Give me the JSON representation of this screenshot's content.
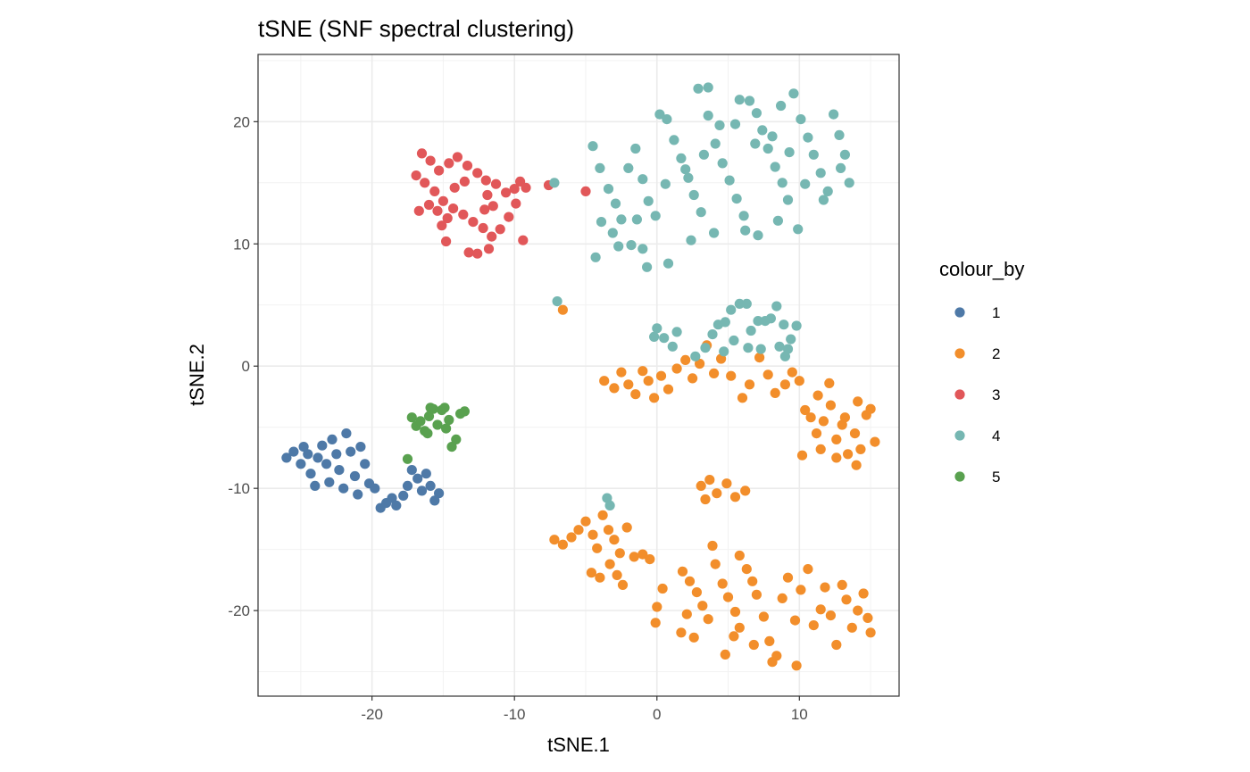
{
  "chart_data": {
    "type": "scatter",
    "title": "tSNE (SNF spectral clustering)",
    "xlabel": "tSNE.1",
    "ylabel": "tSNE.2",
    "xlim": [
      -28,
      17
    ],
    "ylim": [
      -27,
      25.5
    ],
    "x_ticks": [
      -20,
      -10,
      0,
      10
    ],
    "y_ticks": [
      -20,
      -10,
      0,
      10,
      20
    ],
    "grid": true,
    "legend": {
      "title": "colour_by",
      "placement": "right"
    },
    "series": [
      {
        "name": "1",
        "color": "#4e79a7",
        "points": [
          [
            -26,
            -7.5
          ],
          [
            -25.5,
            -7
          ],
          [
            -25,
            -8
          ],
          [
            -24.8,
            -6.6
          ],
          [
            -24.5,
            -7.2
          ],
          [
            -24.3,
            -8.8
          ],
          [
            -24,
            -9.8
          ],
          [
            -23.8,
            -7.5
          ],
          [
            -23.5,
            -6.5
          ],
          [
            -23.2,
            -8
          ],
          [
            -23,
            -9.5
          ],
          [
            -22.8,
            -6
          ],
          [
            -22.5,
            -7.2
          ],
          [
            -22.3,
            -8.5
          ],
          [
            -22,
            -10
          ],
          [
            -21.8,
            -5.5
          ],
          [
            -21.5,
            -7
          ],
          [
            -21.2,
            -9
          ],
          [
            -21,
            -10.5
          ],
          [
            -20.8,
            -6.6
          ],
          [
            -20.5,
            -8
          ],
          [
            -20.2,
            -9.6
          ],
          [
            -19.8,
            -10
          ],
          [
            -19.4,
            -11.6
          ],
          [
            -19,
            -11.2
          ],
          [
            -18.6,
            -10.8
          ],
          [
            -18.3,
            -11.4
          ],
          [
            -17.8,
            -10.6
          ],
          [
            -17.5,
            -9.8
          ],
          [
            -17.2,
            -8.5
          ],
          [
            -16.8,
            -9.2
          ],
          [
            -16.5,
            -10.2
          ],
          [
            -16.2,
            -8.8
          ],
          [
            -15.9,
            -9.8
          ],
          [
            -15.6,
            -11
          ],
          [
            -15.3,
            -10.4
          ]
        ]
      },
      {
        "name": "2",
        "color": "#f28e2b",
        "points": [
          [
            -6.6,
            4.6
          ],
          [
            -3.7,
            -1.2
          ],
          [
            -3,
            -1.8
          ],
          [
            -2.5,
            -0.5
          ],
          [
            -2,
            -1.5
          ],
          [
            -1.5,
            -2.3
          ],
          [
            -1,
            -0.4
          ],
          [
            -0.6,
            -1.2
          ],
          [
            -0.2,
            -2.6
          ],
          [
            0.3,
            -0.8
          ],
          [
            0.8,
            -1.9
          ],
          [
            1.4,
            -0.2
          ],
          [
            2,
            0.5
          ],
          [
            2.5,
            -1
          ],
          [
            3,
            0.2
          ],
          [
            3.5,
            1.7
          ],
          [
            4,
            -0.6
          ],
          [
            4.5,
            0.6
          ],
          [
            5.2,
            -0.8
          ],
          [
            6,
            -2.6
          ],
          [
            6.5,
            -1.5
          ],
          [
            7.2,
            0.7
          ],
          [
            7.8,
            -0.7
          ],
          [
            8.3,
            -2.2
          ],
          [
            9,
            -1.5
          ],
          [
            9.5,
            -0.5
          ],
          [
            10,
            -1.2
          ],
          [
            10.4,
            -3.6
          ],
          [
            10.8,
            -4.2
          ],
          [
            11.2,
            -5.5
          ],
          [
            11.7,
            -4.5
          ],
          [
            12.2,
            -3.2
          ],
          [
            12.6,
            -6
          ],
          [
            13,
            -4.8
          ],
          [
            13.4,
            -7.2
          ],
          [
            13.9,
            -5.5
          ],
          [
            14.3,
            -6.8
          ],
          [
            14.7,
            -4
          ],
          [
            15,
            -3.5
          ],
          [
            15.3,
            -6.2
          ],
          [
            14,
            -8.1
          ],
          [
            12.6,
            -7.5
          ],
          [
            11.5,
            -6.8
          ],
          [
            10.2,
            -7.3
          ],
          [
            11.3,
            -2.4
          ],
          [
            12.1,
            -1.4
          ],
          [
            13.2,
            -4.2
          ],
          [
            14.1,
            -2.9
          ],
          [
            3.1,
            -9.8
          ],
          [
            3.7,
            -9.3
          ],
          [
            4.2,
            -10.4
          ],
          [
            4.9,
            -9.6
          ],
          [
            5.5,
            -10.7
          ],
          [
            6.2,
            -10.2
          ],
          [
            3.4,
            -10.9
          ],
          [
            -7.2,
            -14.2
          ],
          [
            -6.6,
            -14.6
          ],
          [
            -6,
            -14
          ],
          [
            -5.5,
            -13.4
          ],
          [
            -5,
            -12.7
          ],
          [
            -4.5,
            -13.8
          ],
          [
            -4.2,
            -14.9
          ],
          [
            -3.8,
            -12.2
          ],
          [
            -3.4,
            -13.4
          ],
          [
            -3,
            -14.2
          ],
          [
            -2.6,
            -15.3
          ],
          [
            -2.1,
            -13.2
          ],
          [
            -1.6,
            -15.6
          ],
          [
            -1,
            -15.4
          ],
          [
            -0.5,
            -15.8
          ],
          [
            -4.6,
            -16.9
          ],
          [
            -4,
            -17.3
          ],
          [
            -3.3,
            -16.2
          ],
          [
            -2.8,
            -17.1
          ],
          [
            -2.4,
            -17.9
          ],
          [
            0,
            -19.7
          ],
          [
            0.4,
            -18.2
          ],
          [
            -0.1,
            -21
          ],
          [
            1.8,
            -16.8
          ],
          [
            2.3,
            -17.6
          ],
          [
            2.8,
            -18.5
          ],
          [
            3.2,
            -19.6
          ],
          [
            3.6,
            -20.7
          ],
          [
            2.1,
            -20.3
          ],
          [
            1.7,
            -21.8
          ],
          [
            2.6,
            -22.2
          ],
          [
            4.1,
            -16.2
          ],
          [
            4.6,
            -17.8
          ],
          [
            5,
            -18.9
          ],
          [
            5.5,
            -20.1
          ],
          [
            5.8,
            -21.4
          ],
          [
            6.3,
            -16.6
          ],
          [
            6.7,
            -17.6
          ],
          [
            7,
            -18.7
          ],
          [
            7.5,
            -20.5
          ],
          [
            7.9,
            -22.5
          ],
          [
            8.4,
            -23.7
          ],
          [
            8.8,
            -19
          ],
          [
            9.2,
            -17.3
          ],
          [
            9.7,
            -20.8
          ],
          [
            10.1,
            -18.3
          ],
          [
            10.6,
            -16.6
          ],
          [
            11,
            -21.2
          ],
          [
            11.5,
            -19.9
          ],
          [
            11.8,
            -18.1
          ],
          [
            12.2,
            -20.4
          ],
          [
            12.6,
            -22.8
          ],
          [
            13,
            -17.9
          ],
          [
            13.3,
            -19.1
          ],
          [
            13.7,
            -21.4
          ],
          [
            14.1,
            -20
          ],
          [
            14.5,
            -18.6
          ],
          [
            14.8,
            -20.6
          ],
          [
            15,
            -21.8
          ],
          [
            4.8,
            -23.6
          ],
          [
            5.4,
            -22.1
          ],
          [
            6.8,
            -22.8
          ],
          [
            8.1,
            -24.2
          ],
          [
            9.8,
            -24.5
          ],
          [
            3.9,
            -14.7
          ],
          [
            5.8,
            -15.5
          ]
        ]
      },
      {
        "name": "3",
        "color": "#e15759",
        "points": [
          [
            -16.5,
            17.4
          ],
          [
            -15.9,
            16.8
          ],
          [
            -15.3,
            16
          ],
          [
            -14.6,
            16.6
          ],
          [
            -14,
            17.1
          ],
          [
            -13.3,
            16.4
          ],
          [
            -12.6,
            15.8
          ],
          [
            -12,
            15.2
          ],
          [
            -11.3,
            14.9
          ],
          [
            -10.6,
            14.2
          ],
          [
            -10,
            14.5
          ],
          [
            -9.6,
            15.1
          ],
          [
            -9.2,
            14.6
          ],
          [
            -16.9,
            15.6
          ],
          [
            -16.3,
            15
          ],
          [
            -15.6,
            14.3
          ],
          [
            -15,
            13.5
          ],
          [
            -14.3,
            12.9
          ],
          [
            -13.6,
            12.4
          ],
          [
            -12.9,
            11.8
          ],
          [
            -12.2,
            11.3
          ],
          [
            -11.6,
            10.6
          ],
          [
            -11,
            11.2
          ],
          [
            -10.4,
            12.2
          ],
          [
            -9.9,
            13.3
          ],
          [
            -15.1,
            11.5
          ],
          [
            -14.8,
            10.2
          ],
          [
            -13.2,
            9.3
          ],
          [
            -12.6,
            9.2
          ],
          [
            -11.8,
            9.6
          ],
          [
            -9.4,
            10.3
          ],
          [
            -16,
            13.2
          ],
          [
            -15.4,
            12.7
          ],
          [
            -14.7,
            12.1
          ],
          [
            -12.1,
            12.8
          ],
          [
            -11.5,
            13.1
          ],
          [
            -11.9,
            14
          ],
          [
            -13.5,
            15.1
          ],
          [
            -14.2,
            14.6
          ],
          [
            -7.6,
            14.8
          ],
          [
            -5,
            14.3
          ],
          [
            -16.7,
            12.7
          ]
        ]
      },
      {
        "name": "4",
        "color": "#76b7b2",
        "points": [
          [
            -7.2,
            15
          ],
          [
            -7,
            5.3
          ],
          [
            -4.5,
            18
          ],
          [
            -4,
            16.2
          ],
          [
            -3.4,
            14.5
          ],
          [
            -2.9,
            13.3
          ],
          [
            -2.5,
            12
          ],
          [
            -2,
            16.2
          ],
          [
            -1.5,
            17.8
          ],
          [
            -1,
            15.3
          ],
          [
            -0.6,
            13.5
          ],
          [
            -0.1,
            12.3
          ],
          [
            0.2,
            20.6
          ],
          [
            0.7,
            20.2
          ],
          [
            1.2,
            18.5
          ],
          [
            1.7,
            17
          ],
          [
            2.2,
            15.4
          ],
          [
            2.6,
            14
          ],
          [
            3.1,
            12.6
          ],
          [
            3.6,
            20.5
          ],
          [
            4.1,
            18.2
          ],
          [
            4.6,
            16.6
          ],
          [
            5.1,
            15.2
          ],
          [
            5.6,
            13.7
          ],
          [
            6.1,
            12.3
          ],
          [
            6.5,
            21.7
          ],
          [
            7,
            20.7
          ],
          [
            7.4,
            19.3
          ],
          [
            7.8,
            17.8
          ],
          [
            8.3,
            16.3
          ],
          [
            8.8,
            15
          ],
          [
            9.2,
            13.6
          ],
          [
            9.6,
            22.3
          ],
          [
            10.1,
            20.2
          ],
          [
            10.6,
            18.7
          ],
          [
            11,
            17.3
          ],
          [
            11.5,
            15.8
          ],
          [
            12,
            14.3
          ],
          [
            12.4,
            20.6
          ],
          [
            12.8,
            18.9
          ],
          [
            13.2,
            17.3
          ],
          [
            13.5,
            15
          ],
          [
            2.9,
            22.7
          ],
          [
            3.6,
            22.8
          ],
          [
            5.8,
            21.8
          ],
          [
            8.7,
            21.3
          ],
          [
            -3.9,
            11.8
          ],
          [
            -3.1,
            10.9
          ],
          [
            -2.7,
            9.8
          ],
          [
            -1.8,
            9.9
          ],
          [
            -1,
            9.6
          ],
          [
            -0.7,
            8.1
          ],
          [
            0.8,
            8.4
          ],
          [
            2.4,
            10.3
          ],
          [
            4,
            10.9
          ],
          [
            6.2,
            11.1
          ],
          [
            7.1,
            10.7
          ],
          [
            8.5,
            11.9
          ],
          [
            9.9,
            11.2
          ],
          [
            -4.3,
            8.9
          ],
          [
            -1.4,
            12
          ],
          [
            0.6,
            14.9
          ],
          [
            2,
            16.1
          ],
          [
            3.3,
            17.3
          ],
          [
            4.4,
            19.7
          ],
          [
            5.5,
            19.8
          ],
          [
            6.9,
            18.2
          ],
          [
            8.1,
            18.8
          ],
          [
            9.3,
            17.5
          ],
          [
            10.4,
            14.9
          ],
          [
            11.7,
            13.6
          ],
          [
            12.9,
            16.2
          ],
          [
            -3.5,
            -10.8
          ],
          [
            -3.3,
            -11.4
          ],
          [
            0,
            3.1
          ],
          [
            0.5,
            2.3
          ],
          [
            1.4,
            2.8
          ],
          [
            2.7,
            0.8
          ],
          [
            3.4,
            1.5
          ],
          [
            3.9,
            2.6
          ],
          [
            4.3,
            3.4
          ],
          [
            4.8,
            3.6
          ],
          [
            5.2,
            4.6
          ],
          [
            5.8,
            5.1
          ],
          [
            6.3,
            5.1
          ],
          [
            6.6,
            2.9
          ],
          [
            7.1,
            3.7
          ],
          [
            7.6,
            3.7
          ],
          [
            8,
            3.9
          ],
          [
            8.4,
            4.9
          ],
          [
            8.9,
            3.4
          ],
          [
            9.4,
            2.2
          ],
          [
            9.8,
            3.3
          ],
          [
            9.2,
            1.4
          ],
          [
            8.6,
            1.6
          ],
          [
            7.3,
            1.4
          ],
          [
            6.4,
            1.5
          ],
          [
            5.4,
            2.1
          ],
          [
            4.7,
            1.2
          ],
          [
            9,
            0.8
          ],
          [
            1.1,
            1.6
          ],
          [
            -0.2,
            2.4
          ]
        ]
      },
      {
        "name": "5",
        "color": "#59a14f",
        "points": [
          [
            -17.5,
            -7.6
          ],
          [
            -17.2,
            -4.2
          ],
          [
            -16.9,
            -4.9
          ],
          [
            -16.6,
            -4.5
          ],
          [
            -16.3,
            -5.3
          ],
          [
            -16,
            -4.1
          ],
          [
            -15.7,
            -3.5
          ],
          [
            -15.4,
            -4.8
          ],
          [
            -15.1,
            -3.6
          ],
          [
            -14.8,
            -5.1
          ],
          [
            -14.6,
            -4.4
          ],
          [
            -14.4,
            -6.6
          ],
          [
            -14.1,
            -6
          ],
          [
            -13.8,
            -3.9
          ],
          [
            -13.5,
            -3.7
          ],
          [
            -15.9,
            -3.4
          ],
          [
            -14.9,
            -3.4
          ],
          [
            -16.1,
            -5.5
          ]
        ]
      }
    ]
  }
}
